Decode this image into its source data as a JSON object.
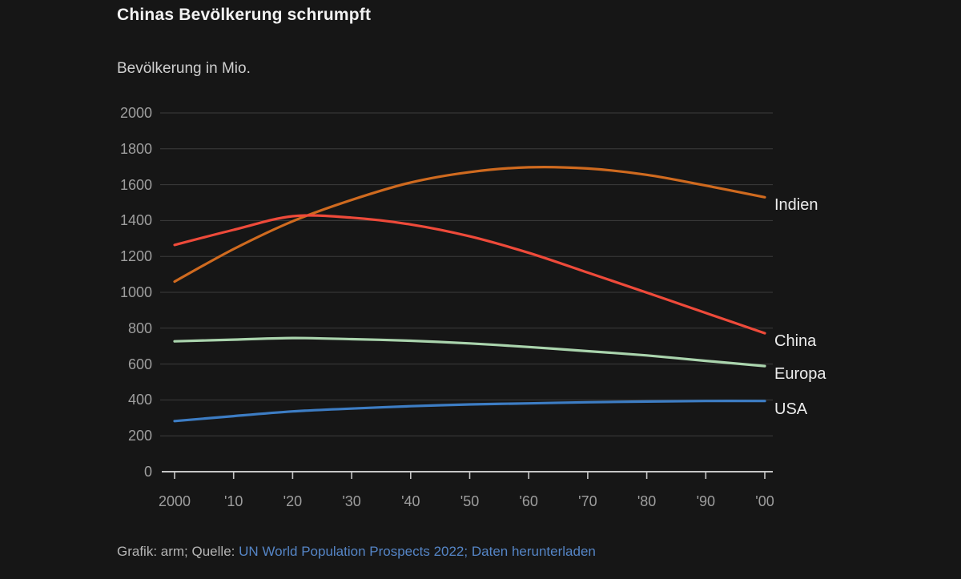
{
  "chart_data": {
    "type": "line",
    "title": "Chinas Bevölkerung schrumpft",
    "subtitle": "Bevölkerung in Mio.",
    "x": [
      2000,
      2010,
      2020,
      2030,
      2040,
      2050,
      2060,
      2070,
      2080,
      2090,
      2100
    ],
    "x_tick_labels": [
      "2000",
      "'10",
      "'20",
      "'30",
      "'40",
      "'50",
      "'60",
      "'70",
      "'80",
      "'90",
      "'00"
    ],
    "y_ticks": [
      0,
      200,
      400,
      600,
      800,
      1000,
      1200,
      1400,
      1600,
      1800,
      2000
    ],
    "ylim": [
      0,
      2000
    ],
    "grid": true,
    "legend_position": "line-end-right",
    "series": [
      {
        "name": "Indien",
        "color": "#cf6a1f",
        "values": [
          1060,
          1241,
          1396,
          1515,
          1612,
          1670,
          1697,
          1690,
          1655,
          1595,
          1530
        ]
      },
      {
        "name": "China",
        "color": "#ee4a3a",
        "values": [
          1264,
          1348,
          1424,
          1416,
          1378,
          1312,
          1220,
          1110,
          998,
          885,
          772
        ]
      },
      {
        "name": "Europa",
        "color": "#aad4ad",
        "values": [
          727,
          736,
          745,
          739,
          730,
          715,
          695,
          672,
          648,
          618,
          589
        ]
      },
      {
        "name": "USA",
        "color": "#3d7dc4",
        "values": [
          282,
          310,
          336,
          352,
          365,
          375,
          381,
          387,
          391,
          394,
          394
        ]
      }
    ]
  },
  "theme": {
    "background": "#161616",
    "grid_color": "#3c3c3c",
    "axis_color": "#c6c6c6",
    "tick_label_color": "#9e9e9e",
    "title_color": "#f2f2f2",
    "subtitle_color": "#cfcfcf",
    "series_label_color": "#ececec",
    "footer_text_color": "#b5b5b5",
    "link_color": "#5585c6"
  },
  "footer": {
    "prefix": "Grafik: arm; Quelle:",
    "source_link": "UN World Population Prospects 2022;",
    "download_link": "Daten herunterladen"
  }
}
